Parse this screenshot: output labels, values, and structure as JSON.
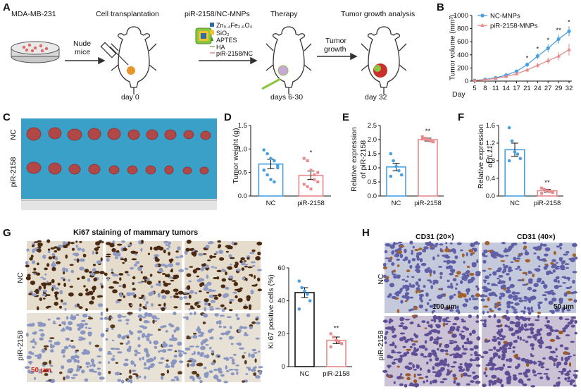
{
  "panelA": {
    "label": "A",
    "cell_line": "MDA-MB-231",
    "nude_mice": [
      "Nude",
      "mice"
    ],
    "step1": "Cell transplantation",
    "step2": "piR-2158/NC-MNPs",
    "step3": "Therapy",
    "step4": "Tumor growth analysis",
    "day0": "day 0",
    "day_therapy": "days 6-30",
    "day32": "day 32",
    "tumor_growth": [
      "Tumor",
      "growth"
    ],
    "legend": [
      "Zn₀.₄Fe₂.₆O₄",
      "SiO₂",
      "APTES",
      "HA",
      "piR-2158/NC"
    ],
    "colors": {
      "green": "#8cc63f",
      "yellow": "#f2c12e",
      "blue": "#2e6da4",
      "tumor_orange": "#e8952a",
      "tumor_red": "#c9302c"
    }
  },
  "panelB": {
    "label": "B",
    "chart_data": {
      "type": "line",
      "ylabel": "Tumor volume (mm³)",
      "xlabel": "Day",
      "x": [
        5,
        8,
        11,
        14,
        17,
        21,
        24,
        27,
        29,
        32
      ],
      "ylim": [
        0,
        1000
      ],
      "yticks": [
        0,
        200,
        400,
        600,
        800,
        1000
      ],
      "series": [
        {
          "name": "NC-MNPs",
          "color": "#4a9fe0",
          "values": [
            10,
            25,
            50,
            90,
            150,
            250,
            380,
            500,
            640,
            760
          ],
          "err": [
            5,
            8,
            12,
            18,
            25,
            35,
            45,
            60,
            70,
            75
          ]
        },
        {
          "name": "piR-2158-MNPs",
          "color": "#e8888a",
          "values": [
            10,
            20,
            40,
            70,
            110,
            170,
            240,
            310,
            380,
            480
          ],
          "err": [
            5,
            7,
            10,
            15,
            20,
            30,
            40,
            50,
            60,
            90
          ]
        }
      ],
      "significance": [
        {
          "x": 21,
          "mark": "*"
        },
        {
          "x": 24,
          "mark": "*"
        },
        {
          "x": 27,
          "mark": "*"
        },
        {
          "x": 29,
          "mark": "**"
        },
        {
          "x": 32,
          "mark": "*"
        }
      ]
    }
  },
  "panelC": {
    "label": "C",
    "rows": [
      "NC",
      "piR-2158"
    ]
  },
  "panelD": {
    "label": "D",
    "chart_data": {
      "type": "bar",
      "ylabel": "Tumor weight (g)",
      "categories": [
        "NC",
        "piR-2158"
      ],
      "values": [
        0.68,
        0.44
      ],
      "err": [
        0.1,
        0.09
      ],
      "ylim": [
        0,
        1.5
      ],
      "yticks": [
        "0.0",
        "0.5",
        "1.0",
        "1.5"
      ],
      "points": [
        [
          0.98,
          0.9,
          0.8,
          0.75,
          0.65,
          0.55,
          0.45,
          0.35,
          0.3,
          0.6
        ],
        [
          0.8,
          0.75,
          0.55,
          0.45,
          0.3,
          0.25,
          0.2,
          0.15,
          0.35,
          0.5
        ]
      ],
      "colors": [
        "#4a9fe0",
        "#e8888a"
      ],
      "significance": "*"
    }
  },
  "panelE": {
    "label": "E",
    "chart_data": {
      "type": "bar",
      "ylabel": [
        "Relative expression",
        "of piR-2158"
      ],
      "categories": [
        "NC",
        "piR-2158"
      ],
      "values": [
        1.03,
        2.0
      ],
      "err": [
        0.13,
        0.05
      ],
      "ylim": [
        0,
        2.5
      ],
      "yticks": [
        "0.0",
        "0.5",
        "1.0",
        "1.5",
        "2.0",
        "2.5"
      ],
      "points": [
        [
          1.5,
          1.25,
          1.05,
          0.9,
          0.75,
          0.7
        ],
        [
          2.1,
          2.05,
          2.0,
          1.95,
          1.92,
          2.02
        ]
      ],
      "colors": [
        "#4a9fe0",
        "#e8888a"
      ],
      "significance": "**"
    }
  },
  "panelF": {
    "label": "F",
    "chart_data": {
      "type": "bar",
      "ylabel": [
        "Relative expression",
        "of ",
        "IL11"
      ],
      "categories": [
        "NC",
        "piR-2158"
      ],
      "values": [
        1.05,
        0.12
      ],
      "err": [
        0.15,
        0.03
      ],
      "ylim": [
        0,
        1.6
      ],
      "yticks": [
        "0.0",
        "0.4",
        "0.8",
        "1.2",
        "1.6"
      ],
      "points": [
        [
          1.55,
          1.25,
          1.0,
          0.95,
          0.85,
          0.8
        ],
        [
          0.18,
          0.15,
          0.12,
          0.1,
          0.08,
          0.06
        ]
      ],
      "colors": [
        "#4a9fe0",
        "#e8888a"
      ],
      "significance": "**"
    }
  },
  "panelG": {
    "label": "G",
    "title": "Ki67 staining of mammary tumors",
    "rows": [
      "NC",
      "piR-2158"
    ],
    "scale": "50 μm",
    "chart_data": {
      "type": "bar",
      "ylabel": "Ki 67 positive cells (%)",
      "categories": [
        "NC",
        "piR-2158"
      ],
      "values": [
        45,
        16
      ],
      "err": [
        3,
        2
      ],
      "ylim": [
        0,
        60
      ],
      "yticks": [
        "0",
        "20",
        "40",
        "60"
      ],
      "points": [
        [
          52,
          48,
          46,
          44,
          40,
          35
        ],
        [
          20,
          18,
          16,
          15,
          14,
          12
        ]
      ],
      "colors": [
        "#111111",
        "#e8888a"
      ],
      "significance": "**"
    }
  },
  "panelH": {
    "label": "H",
    "cols": [
      "CD31 (20×)",
      "CD31 (40×)"
    ],
    "rows": [
      "NC",
      "piR-2158"
    ],
    "scale20": "100 μm",
    "scale40": "50 μm"
  }
}
